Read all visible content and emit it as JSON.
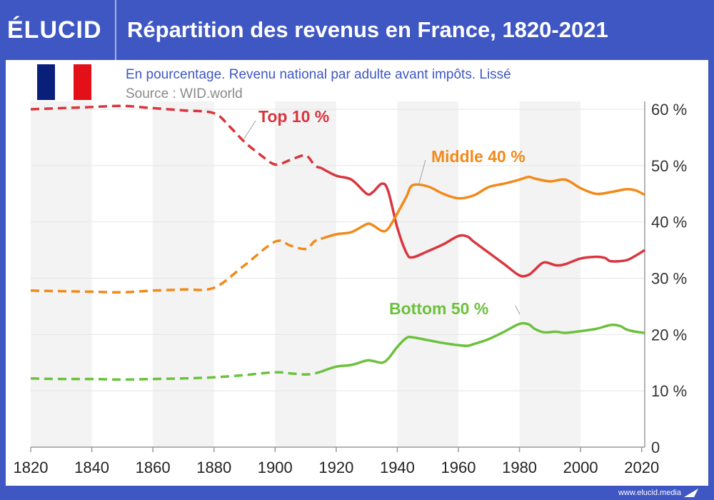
{
  "header": {
    "logo": "ÉLUCID",
    "title": "Répartition des revenus en France, 1820-2021"
  },
  "colors": {
    "brand": "#3f57c2",
    "top10": "#d9363e",
    "middle40": "#f28a1a",
    "bottom50": "#6cc13d",
    "flag_blue": "#0a1f7a",
    "flag_red": "#e3101a"
  },
  "flag_icon": "france-flag-icon",
  "footer": {
    "url": "www.elucid.media",
    "mark_icon": "elucid-arrow-icon"
  },
  "chart_data": {
    "type": "line",
    "subtitle": "En pourcentage. Revenu national par adulte avant impôts. Lissé",
    "source": "Source : WID.world",
    "xlim": [
      1820,
      2021
    ],
    "ylim": [
      0,
      60
    ],
    "x_ticks": [
      "1820",
      "1840",
      "1860",
      "1880",
      "1900",
      "1920",
      "1940",
      "1960",
      "1980",
      "2000",
      "2020"
    ],
    "y_ticks": [
      "0",
      "10 %",
      "20 %",
      "30 %",
      "40 %",
      "50 %",
      "60 %"
    ],
    "grid": true,
    "dashed_until": 1915,
    "series": [
      {
        "name": "Top 10 %",
        "color": "#d9363e",
        "points": [
          [
            1820,
            60
          ],
          [
            1830,
            60.2
          ],
          [
            1840,
            60.4
          ],
          [
            1850,
            60.6
          ],
          [
            1860,
            60.2
          ],
          [
            1870,
            59.8
          ],
          [
            1880,
            59.3
          ],
          [
            1885,
            57
          ],
          [
            1890,
            54.2
          ],
          [
            1895,
            52
          ],
          [
            1900,
            50.2
          ],
          [
            1905,
            51
          ],
          [
            1910,
            51.8
          ],
          [
            1913,
            50
          ],
          [
            1915,
            49.6
          ],
          [
            1920,
            48.2
          ],
          [
            1925,
            47.5
          ],
          [
            1930,
            45
          ],
          [
            1932,
            45.3
          ],
          [
            1935,
            46.8
          ],
          [
            1937,
            45.5
          ],
          [
            1940,
            39
          ],
          [
            1943,
            34.5
          ],
          [
            1945,
            33.7
          ],
          [
            1950,
            34.8
          ],
          [
            1955,
            36
          ],
          [
            1960,
            37.5
          ],
          [
            1963,
            37.4
          ],
          [
            1965,
            36.5
          ],
          [
            1970,
            34.5
          ],
          [
            1975,
            32.5
          ],
          [
            1980,
            30.5
          ],
          [
            1983,
            30.6
          ],
          [
            1985,
            31.5
          ],
          [
            1988,
            32.8
          ],
          [
            1992,
            32.3
          ],
          [
            1995,
            32.5
          ],
          [
            2000,
            33.5
          ],
          [
            2005,
            33.8
          ],
          [
            2008,
            33.6
          ],
          [
            2010,
            33
          ],
          [
            2015,
            33.2
          ],
          [
            2018,
            34
          ],
          [
            2021,
            35
          ]
        ]
      },
      {
        "name": "Middle 40 %",
        "color": "#f28a1a",
        "points": [
          [
            1820,
            27.8
          ],
          [
            1830,
            27.7
          ],
          [
            1840,
            27.6
          ],
          [
            1850,
            27.5
          ],
          [
            1860,
            27.8
          ],
          [
            1870,
            28
          ],
          [
            1880,
            28.3
          ],
          [
            1890,
            32.3
          ],
          [
            1900,
            36.5
          ],
          [
            1905,
            35.8
          ],
          [
            1910,
            35.2
          ],
          [
            1913,
            36.6
          ],
          [
            1915,
            37
          ],
          [
            1920,
            37.8
          ],
          [
            1925,
            38.2
          ],
          [
            1930,
            39.6
          ],
          [
            1932,
            39.4
          ],
          [
            1935,
            38.4
          ],
          [
            1937,
            38.8
          ],
          [
            1940,
            41.5
          ],
          [
            1943,
            44.5
          ],
          [
            1945,
            46.5
          ],
          [
            1950,
            46.3
          ],
          [
            1955,
            45
          ],
          [
            1960,
            44.2
          ],
          [
            1965,
            44.7
          ],
          [
            1970,
            46.2
          ],
          [
            1975,
            46.8
          ],
          [
            1980,
            47.5
          ],
          [
            1983,
            48
          ],
          [
            1985,
            47.7
          ],
          [
            1990,
            47.2
          ],
          [
            1995,
            47.5
          ],
          [
            2000,
            46
          ],
          [
            2005,
            45
          ],
          [
            2010,
            45.3
          ],
          [
            2015,
            45.8
          ],
          [
            2018,
            45.6
          ],
          [
            2021,
            44.8
          ]
        ]
      },
      {
        "name": "Bottom 50 %",
        "color": "#6cc13d",
        "points": [
          [
            1820,
            12.2
          ],
          [
            1830,
            12.1
          ],
          [
            1840,
            12.1
          ],
          [
            1850,
            12
          ],
          [
            1860,
            12.1
          ],
          [
            1870,
            12.2
          ],
          [
            1880,
            12.4
          ],
          [
            1890,
            12.8
          ],
          [
            1900,
            13.3
          ],
          [
            1905,
            13.1
          ],
          [
            1910,
            12.9
          ],
          [
            1913,
            13.1
          ],
          [
            1915,
            13.4
          ],
          [
            1920,
            14.3
          ],
          [
            1925,
            14.6
          ],
          [
            1930,
            15.4
          ],
          [
            1932,
            15.3
          ],
          [
            1935,
            15
          ],
          [
            1937,
            15.7
          ],
          [
            1940,
            17.8
          ],
          [
            1943,
            19.4
          ],
          [
            1945,
            19.5
          ],
          [
            1950,
            19
          ],
          [
            1955,
            18.5
          ],
          [
            1960,
            18.1
          ],
          [
            1963,
            18
          ],
          [
            1965,
            18.3
          ],
          [
            1970,
            19.2
          ],
          [
            1975,
            20.5
          ],
          [
            1980,
            21.9
          ],
          [
            1983,
            21.8
          ],
          [
            1985,
            21
          ],
          [
            1988,
            20.4
          ],
          [
            1992,
            20.5
          ],
          [
            1995,
            20.3
          ],
          [
            2000,
            20.6
          ],
          [
            2005,
            21
          ],
          [
            2010,
            21.7
          ],
          [
            2013,
            21.5
          ],
          [
            2015,
            20.9
          ],
          [
            2018,
            20.5
          ],
          [
            2021,
            20.3
          ]
        ]
      }
    ]
  }
}
